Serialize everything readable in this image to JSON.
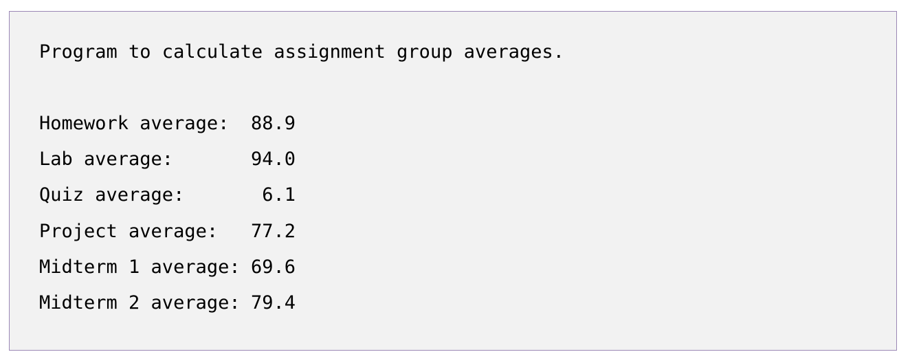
{
  "header": {
    "title": "Program to calculate assignment group averages."
  },
  "rows": [
    {
      "label": "Homework average:",
      "value": "88.9"
    },
    {
      "label": "Lab average:",
      "value": "94.0"
    },
    {
      "label": "Quiz average:",
      "value": "6.1"
    },
    {
      "label": "Project average:",
      "value": "77.2"
    },
    {
      "label": "Midterm 1 average:",
      "value": "69.6"
    },
    {
      "label": "Midterm 2 average:",
      "value": "79.4"
    }
  ]
}
